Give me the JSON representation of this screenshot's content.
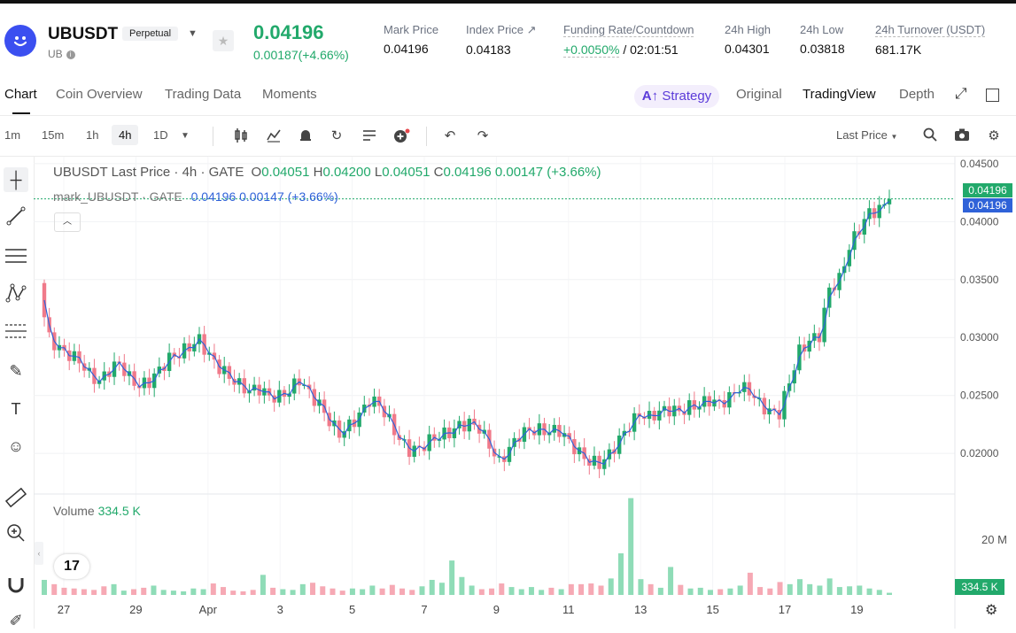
{
  "header": {
    "symbol": "UBUSDT",
    "contract_type": "Perpetual",
    "base": "UB",
    "last_price": "0.04196",
    "change": "0.00187(+4.66%)",
    "stats": [
      {
        "label": "Mark Price",
        "value": "0.04196"
      },
      {
        "label": "Index Price ↗",
        "value": "0.04183"
      },
      {
        "label": "Funding Rate/Countdown",
        "value": "+0.0050%",
        "value2": "/ 02:01:51"
      },
      {
        "label": "24h High",
        "value": "0.04301"
      },
      {
        "label": "24h Low",
        "value": "0.03818"
      },
      {
        "label": "24h Turnover (USDT)",
        "value": "681.17K"
      }
    ]
  },
  "tabs": {
    "chart": "Chart",
    "coin_overview": "Coin Overview",
    "trading_data": "Trading Data",
    "moments": "Moments",
    "strategy": "Strategy",
    "original": "Original",
    "tradingview": "TradingView",
    "depth": "Depth"
  },
  "toolbar": {
    "timeframes": [
      "1m",
      "15m",
      "1h",
      "4h",
      "1D"
    ],
    "selected": "4h",
    "price_mode": "Last Price"
  },
  "legend": {
    "title": "UBUSDT Last Price · 4h · GATE",
    "o_label": "O",
    "o": "0.04051",
    "h_label": "H",
    "h": "0.04200",
    "l_label": "L",
    "l": "0.04051",
    "c_label": "C",
    "c": "0.04196",
    "chg": "0.00147 (+3.66%)",
    "mark_title": "mark_UBUSDT · GATE",
    "mark_value": "0.04196",
    "mark_chg": "0.00147 (+3.66%)"
  },
  "volume": {
    "label": "Volume",
    "value": "334.5 K",
    "axis_label": "20 M",
    "badge": "334.5 K"
  },
  "colors": {
    "up": "#22a96b",
    "down": "#f07a8a",
    "accent": "#3b4ff0",
    "mark": "#2f62d8"
  },
  "chart_data": {
    "type": "candlestick",
    "x_ticks": [
      "27",
      "29",
      "Apr",
      "3",
      "5",
      "7",
      "9",
      "11",
      "13",
      "15",
      "17",
      "19"
    ],
    "y_ticks": [
      "0.04500",
      "0.04000",
      "0.03500",
      "0.03000",
      "0.02500",
      "0.02000"
    ],
    "ylim": [
      0.0165,
      0.0456
    ],
    "price_labels": [
      "0.04196",
      "0.04196"
    ],
    "close_series": [
      0.0335,
      0.03,
      0.029,
      0.0285,
      0.028,
      0.0268,
      0.0262,
      0.0272,
      0.0278,
      0.0265,
      0.0258,
      0.0262,
      0.0272,
      0.0282,
      0.0286,
      0.0292,
      0.0298,
      0.0284,
      0.0274,
      0.0266,
      0.0259,
      0.0254,
      0.0256,
      0.0249,
      0.0249,
      0.0254,
      0.0264,
      0.0252,
      0.0242,
      0.0228,
      0.0217,
      0.0224,
      0.0233,
      0.0246,
      0.0242,
      0.0228,
      0.0212,
      0.0203,
      0.0204,
      0.0211,
      0.0215,
      0.0218,
      0.0224,
      0.0226,
      0.0222,
      0.0207,
      0.0192,
      0.0204,
      0.0216,
      0.022,
      0.022,
      0.0219,
      0.022,
      0.021,
      0.02,
      0.0193,
      0.0191,
      0.0199,
      0.0212,
      0.0224,
      0.0234,
      0.0231,
      0.0236,
      0.0238,
      0.0236,
      0.024,
      0.0242,
      0.0246,
      0.0243,
      0.0248,
      0.0257,
      0.0254,
      0.0243,
      0.0236,
      0.0235,
      0.0262,
      0.0288,
      0.0297,
      0.0302,
      0.0342,
      0.035,
      0.0378,
      0.0394,
      0.0408,
      0.041,
      0.04196
    ],
    "volumes_m": [
      2.1,
      1.5,
      1.0,
      0.9,
      0.8,
      0.7,
      1.2,
      1.5,
      0.6,
      0.8,
      1.0,
      1.3,
      0.7,
      0.6,
      0.5,
      0.9,
      0.8,
      1.6,
      1.1,
      0.6,
      0.5,
      0.7,
      2.8,
      1.0,
      0.8,
      0.7,
      1.5,
      1.7,
      1.2,
      0.9,
      0.6,
      0.9,
      0.8,
      1.3,
      0.9,
      1.4,
      0.9,
      0.7,
      1.2,
      2.1,
      1.7,
      4.8,
      2.5,
      1.3,
      0.8,
      0.9,
      1.6,
      1.1,
      0.8,
      1.1,
      0.7,
      1.0,
      0.8,
      1.5,
      1.5,
      1.6,
      1.3,
      2.3,
      5.8,
      13.5,
      2.2,
      1.5,
      1.0,
      3.9,
      1.4,
      0.9,
      1.0,
      0.7,
      0.8,
      0.9,
      1.3,
      3.1,
      1.1,
      0.9,
      1.8,
      1.5,
      2.2,
      1.5,
      1.3,
      2.3,
      1.1,
      1.2,
      1.3,
      0.9,
      0.7,
      0.3
    ]
  }
}
